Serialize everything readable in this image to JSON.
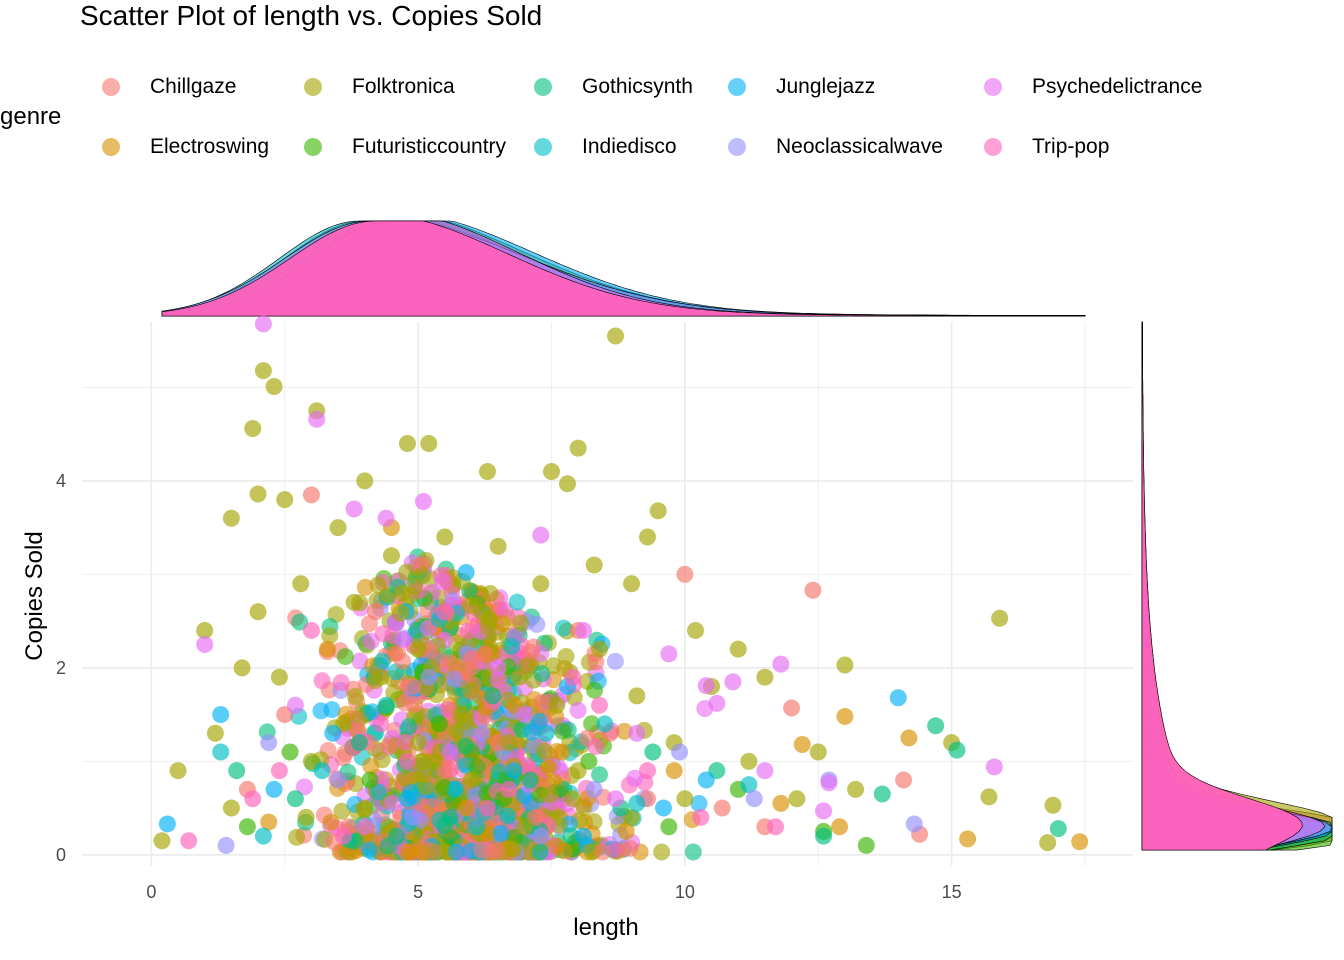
{
  "chart_data": {
    "type": "scatter",
    "title": "Scatter Plot of length vs. Copies Sold",
    "xlabel": "length",
    "ylabel": "Copies Sold",
    "xlim": [
      -1.3,
      18.4
    ],
    "ylim": [
      -0.12,
      5.7
    ],
    "x_ticks": [
      0,
      5,
      10,
      15
    ],
    "y_ticks": [
      0,
      2,
      4
    ],
    "grid": true,
    "legend": {
      "title": "genre",
      "position": "top",
      "entries": [
        {
          "name": "Chillgaze",
          "color": "#F8766D"
        },
        {
          "name": "Electroswing",
          "color": "#D89000"
        },
        {
          "name": "Folktronica",
          "color": "#A3A500"
        },
        {
          "name": "Futuristiccountry",
          "color": "#39B600"
        },
        {
          "name": "Gothicsynth",
          "color": "#00BF7D"
        },
        {
          "name": "Indiedisco",
          "color": "#00BFC4"
        },
        {
          "name": "Junglejazz",
          "color": "#00B0F6"
        },
        {
          "name": "Neoclassicalwave",
          "color": "#9590FF"
        },
        {
          "name": "Psychedelictrance",
          "color": "#E76BF3"
        },
        {
          "name": "Trip-pop",
          "color": "#FF62BC"
        }
      ]
    },
    "marginals": {
      "top": "density of length by genre",
      "right": "density of Copies Sold by genre"
    },
    "series": [
      {
        "name": "Chillgaze",
        "color": "#F8766D",
        "points": [
          [
            3.0,
            3.85
          ],
          [
            10.0,
            3.0
          ],
          [
            12.4,
            2.83
          ],
          [
            14.1,
            0.8
          ],
          [
            14.4,
            0.22
          ],
          [
            12.0,
            1.57
          ],
          [
            9.3,
            0.6
          ],
          [
            6.5,
            1.2
          ],
          [
            4.2,
            2.6
          ],
          [
            8.0,
            2.4
          ],
          [
            2.5,
            1.5
          ],
          [
            5.5,
            0.9
          ],
          [
            7.2,
            0.4
          ],
          [
            3.7,
            0.3
          ],
          [
            6.0,
            2.1
          ],
          [
            1.8,
            0.7
          ],
          [
            4.9,
            1.8
          ],
          [
            8.6,
            1.3
          ],
          [
            10.7,
            0.5
          ],
          [
            11.5,
            0.3
          ]
        ]
      },
      {
        "name": "Electroswing",
        "color": "#D89000",
        "points": [
          [
            13.0,
            1.48
          ],
          [
            14.2,
            1.25
          ],
          [
            15.3,
            0.17
          ],
          [
            17.4,
            0.14
          ],
          [
            12.2,
            1.18
          ],
          [
            11.8,
            0.55
          ],
          [
            12.9,
            0.3
          ],
          [
            9.8,
            0.9
          ],
          [
            6.8,
            1.6
          ],
          [
            4.5,
            3.5
          ],
          [
            3.3,
            2.2
          ],
          [
            5.9,
            0.5
          ],
          [
            7.7,
            1.1
          ],
          [
            2.2,
            0.35
          ],
          [
            8.9,
            0.25
          ]
        ]
      },
      {
        "name": "Folktronica",
        "color": "#A3A500",
        "points": [
          [
            2.1,
            5.18
          ],
          [
            2.3,
            5.01
          ],
          [
            8.7,
            5.55
          ],
          [
            1.9,
            4.56
          ],
          [
            3.1,
            4.75
          ],
          [
            2.0,
            3.86
          ],
          [
            4.0,
            4.0
          ],
          [
            4.8,
            4.4
          ],
          [
            5.2,
            4.4
          ],
          [
            7.5,
            4.1
          ],
          [
            7.8,
            3.97
          ],
          [
            6.3,
            4.1
          ],
          [
            8.0,
            4.35
          ],
          [
            9.5,
            3.68
          ],
          [
            9.3,
            3.4
          ],
          [
            15.9,
            2.53
          ],
          [
            13.0,
            2.03
          ],
          [
            15.0,
            1.2
          ],
          [
            15.7,
            0.62
          ],
          [
            16.9,
            0.53
          ],
          [
            16.8,
            0.13
          ],
          [
            1.5,
            3.6
          ],
          [
            2.5,
            3.8
          ],
          [
            3.5,
            3.5
          ],
          [
            4.5,
            3.2
          ],
          [
            5.5,
            3.4
          ],
          [
            6.5,
            3.3
          ],
          [
            7.3,
            2.9
          ],
          [
            8.3,
            3.1
          ],
          [
            9.0,
            2.9
          ],
          [
            10.2,
            2.4
          ],
          [
            11.0,
            2.2
          ],
          [
            11.5,
            1.9
          ],
          [
            12.5,
            1.1
          ],
          [
            13.2,
            0.7
          ],
          [
            1.0,
            2.4
          ],
          [
            1.2,
            1.3
          ],
          [
            0.5,
            0.9
          ],
          [
            0.2,
            0.15
          ],
          [
            1.5,
            0.5
          ],
          [
            2.0,
            2.6
          ],
          [
            2.8,
            2.9
          ],
          [
            3.8,
            2.7
          ],
          [
            4.3,
            1.9
          ],
          [
            5.0,
            2.2
          ],
          [
            5.8,
            1.5
          ],
          [
            6.2,
            2.6
          ],
          [
            6.9,
            1.9
          ],
          [
            7.6,
            1.6
          ],
          [
            8.4,
            2.2
          ],
          [
            9.1,
            1.7
          ],
          [
            9.8,
            1.2
          ],
          [
            10.5,
            1.8
          ],
          [
            11.2,
            1.0
          ],
          [
            12.1,
            0.6
          ],
          [
            3.0,
            1.0
          ],
          [
            4.0,
            0.5
          ],
          [
            5.0,
            1.2
          ],
          [
            6.0,
            0.8
          ],
          [
            7.0,
            0.3
          ],
          [
            8.0,
            0.9
          ],
          [
            9.0,
            0.4
          ],
          [
            10.0,
            0.6
          ],
          [
            2.4,
            1.9
          ],
          [
            3.6,
            1.4
          ],
          [
            4.7,
            2.8
          ],
          [
            5.3,
            1.0
          ],
          [
            6.7,
            1.2
          ],
          [
            7.9,
            0.6
          ],
          [
            1.7,
            2.0
          ],
          [
            2.9,
            0.4
          ]
        ]
      },
      {
        "name": "Futuristiccountry",
        "color": "#39B600",
        "points": [
          [
            13.4,
            0.1
          ],
          [
            12.6,
            0.25
          ],
          [
            11.0,
            0.7
          ],
          [
            9.7,
            0.3
          ],
          [
            8.2,
            1.0
          ],
          [
            6.6,
            0.6
          ],
          [
            4.1,
            0.8
          ],
          [
            2.6,
            1.1
          ],
          [
            1.8,
            0.3
          ],
          [
            5.4,
            1.4
          ]
        ]
      },
      {
        "name": "Gothicsynth",
        "color": "#00BF7D",
        "points": [
          [
            14.7,
            1.38
          ],
          [
            15.1,
            1.12
          ],
          [
            13.7,
            0.65
          ],
          [
            17.0,
            0.28
          ],
          [
            12.6,
            0.2
          ],
          [
            10.6,
            0.9
          ],
          [
            8.8,
            0.5
          ],
          [
            7.1,
            0.8
          ],
          [
            5.6,
            0.4
          ],
          [
            3.9,
            1.2
          ],
          [
            2.7,
            0.6
          ],
          [
            6.4,
            1.7
          ],
          [
            4.6,
            0.2
          ],
          [
            9.4,
            1.1
          ],
          [
            1.6,
            0.9
          ]
        ]
      },
      {
        "name": "Indiedisco",
        "color": "#00BFC4",
        "points": [
          [
            11.2,
            0.75
          ],
          [
            9.1,
            0.55
          ],
          [
            7.4,
            1.3
          ],
          [
            5.7,
            0.7
          ],
          [
            4.4,
            1.6
          ],
          [
            3.2,
            0.9
          ],
          [
            2.1,
            0.2
          ],
          [
            6.1,
            0.3
          ],
          [
            8.5,
            1.4
          ],
          [
            1.3,
            1.1
          ]
        ]
      },
      {
        "name": "Junglejazz",
        "color": "#00B0F6",
        "points": [
          [
            14.0,
            1.68
          ],
          [
            5.9,
            3.02
          ],
          [
            0.3,
            0.33
          ],
          [
            1.3,
            1.5
          ],
          [
            10.4,
            0.8
          ],
          [
            8.1,
            0.2
          ],
          [
            6.8,
            0.9
          ],
          [
            4.8,
            0.6
          ],
          [
            3.4,
            1.3
          ],
          [
            2.3,
            0.7
          ],
          [
            9.6,
            0.5
          ],
          [
            7.8,
            1.8
          ]
        ]
      },
      {
        "name": "Neoclassicalwave",
        "color": "#9590FF",
        "points": [
          [
            14.3,
            0.33
          ],
          [
            12.7,
            0.8
          ],
          [
            11.3,
            0.6
          ],
          [
            9.9,
            1.1
          ],
          [
            8.3,
            0.7
          ],
          [
            6.2,
            1.3
          ],
          [
            4.9,
            0.4
          ],
          [
            3.5,
            0.8
          ],
          [
            2.2,
            1.2
          ],
          [
            1.4,
            0.1
          ],
          [
            7.3,
            0.2
          ],
          [
            5.2,
            1.9
          ]
        ]
      },
      {
        "name": "Psychedelictrance",
        "color": "#E76BF3",
        "points": [
          [
            2.1,
            5.68
          ],
          [
            3.1,
            4.66
          ],
          [
            15.8,
            0.94
          ],
          [
            12.7,
            0.77
          ],
          [
            12.6,
            0.47
          ],
          [
            11.8,
            2.04
          ],
          [
            10.9,
            1.85
          ],
          [
            10.6,
            1.62
          ],
          [
            10.4,
            1.81
          ],
          [
            9.7,
            2.15
          ],
          [
            8.1,
            2.4
          ],
          [
            7.3,
            3.42
          ],
          [
            4.4,
            3.6
          ],
          [
            5.1,
            3.78
          ],
          [
            1.0,
            2.25
          ],
          [
            3.8,
            3.7
          ],
          [
            6.5,
            2.0
          ],
          [
            9.1,
            1.3
          ],
          [
            11.5,
            0.9
          ],
          [
            2.7,
            1.6
          ],
          [
            5.6,
            1.1
          ],
          [
            8.7,
            0.6
          ],
          [
            4.0,
            0.3
          ],
          [
            7.0,
            1.5
          ]
        ]
      },
      {
        "name": "Trip-pop",
        "color": "#FF62BC",
        "points": [
          [
            0.7,
            0.15
          ],
          [
            1.9,
            0.6
          ],
          [
            3.0,
            2.4
          ],
          [
            4.3,
            1.4
          ],
          [
            5.5,
            2.6
          ],
          [
            6.7,
            0.7
          ],
          [
            7.9,
            1.9
          ],
          [
            9.3,
            0.9
          ],
          [
            10.3,
            0.4
          ],
          [
            11.7,
            0.3
          ],
          [
            2.4,
            0.9
          ],
          [
            4.8,
            1.0
          ],
          [
            6.3,
            0.5
          ],
          [
            8.4,
            1.6
          ],
          [
            3.6,
            0.2
          ]
        ]
      }
    ]
  }
}
